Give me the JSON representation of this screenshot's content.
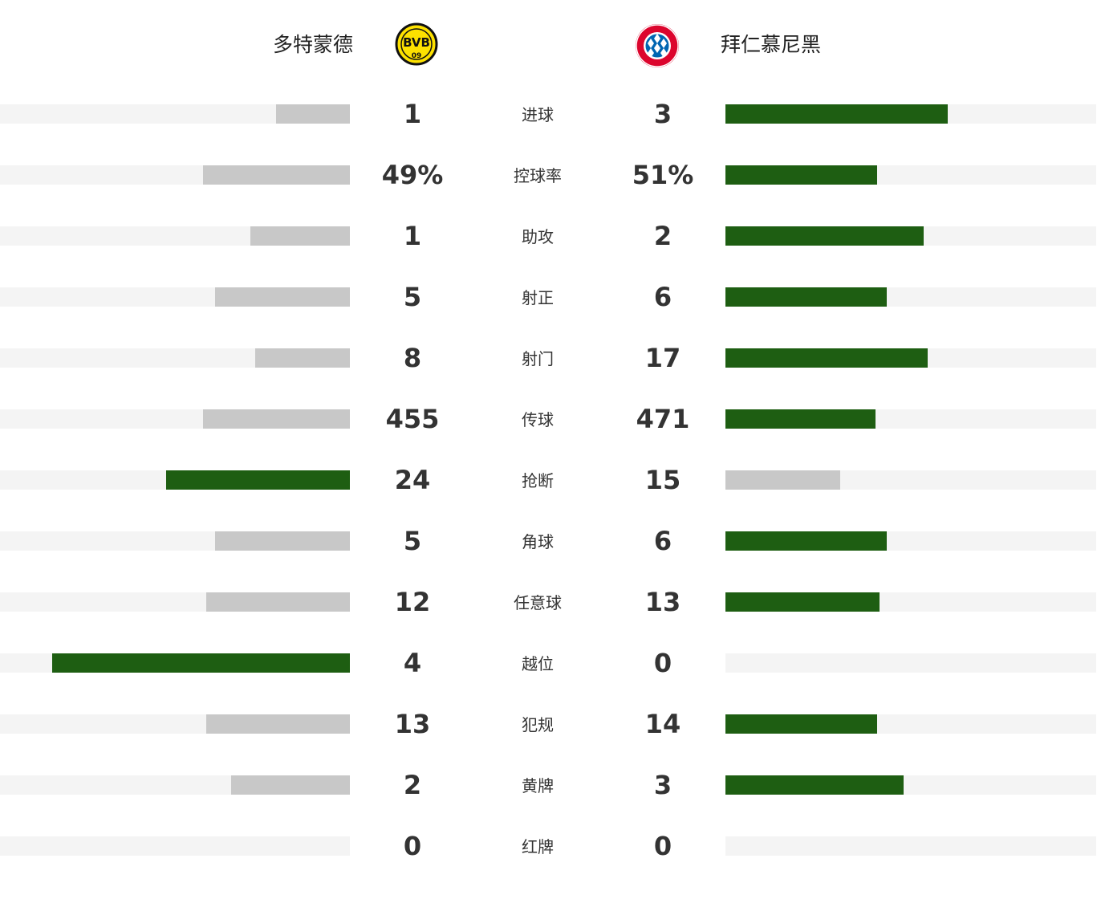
{
  "home": {
    "name": "多特蒙德",
    "crest_icon": "bvb-crest-icon",
    "crest_text": "BVB 09",
    "crest_color": "#fde100"
  },
  "away": {
    "name": "拜仁慕尼黑",
    "crest_icon": "fcb-crest-icon",
    "crest_color": "#dc052d"
  },
  "colors": {
    "leader_bar": "#1e5e12",
    "other_bar": "#c8c8c8",
    "track": "#f4f4f4"
  },
  "stats": [
    {
      "label": "进球",
      "home": "1",
      "away": "3",
      "home_fill": 0.21,
      "away_fill": 0.6
    },
    {
      "label": "控球率",
      "home": "49%",
      "away": "51%",
      "home_fill": 0.42,
      "away_fill": 0.41
    },
    {
      "label": "助攻",
      "home": "1",
      "away": "2",
      "home_fill": 0.285,
      "away_fill": 0.535
    },
    {
      "label": "射正",
      "home": "5",
      "away": "6",
      "home_fill": 0.385,
      "away_fill": 0.435
    },
    {
      "label": "射门",
      "home": "8",
      "away": "17",
      "home_fill": 0.27,
      "away_fill": 0.545
    },
    {
      "label": "传球",
      "home": "455",
      "away": "471",
      "home_fill": 0.42,
      "away_fill": 0.405
    },
    {
      "label": "抢断",
      "home": "24",
      "away": "15",
      "home_fill": 0.525,
      "away_fill": 0.31
    },
    {
      "label": "角球",
      "home": "5",
      "away": "6",
      "home_fill": 0.385,
      "away_fill": 0.435
    },
    {
      "label": "任意球",
      "home": "12",
      "away": "13",
      "home_fill": 0.41,
      "away_fill": 0.415
    },
    {
      "label": "越位",
      "home": "4",
      "away": "0",
      "home_fill": 0.85,
      "away_fill": 0
    },
    {
      "label": "犯规",
      "home": "13",
      "away": "14",
      "home_fill": 0.41,
      "away_fill": 0.41
    },
    {
      "label": "黄牌",
      "home": "2",
      "away": "3",
      "home_fill": 0.34,
      "away_fill": 0.48
    },
    {
      "label": "红牌",
      "home": "0",
      "away": "0",
      "home_fill": 0,
      "away_fill": 0
    }
  ]
}
